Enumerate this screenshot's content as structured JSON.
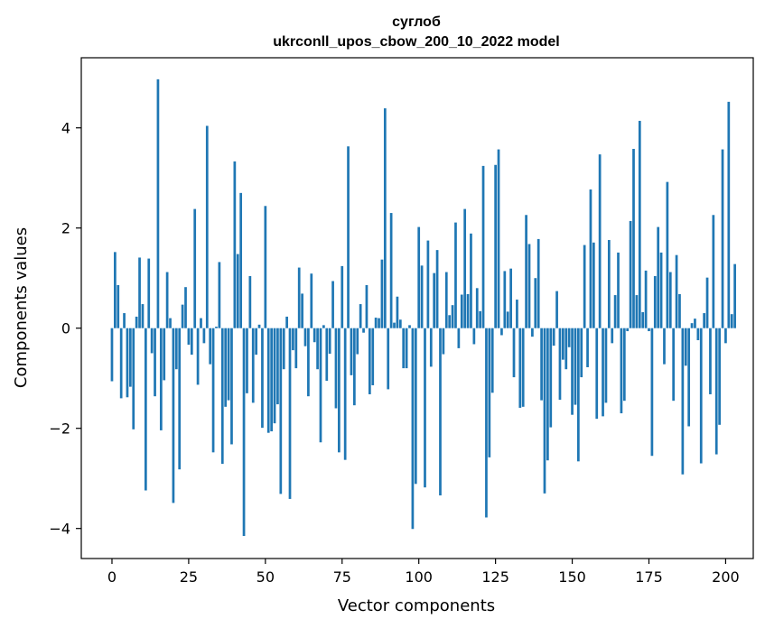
{
  "chart_data": {
    "type": "bar",
    "title_line1": "суглоб",
    "title_line2": "ukrconll_upos_cbow_200_10_2022 model",
    "xlabel": "Vector components",
    "ylabel": "Components values",
    "xlim": [
      -10,
      209
    ],
    "ylim": [
      -4.6,
      5.4
    ],
    "x_ticks": [
      0,
      25,
      50,
      75,
      100,
      125,
      150,
      175,
      200
    ],
    "x_tick_labels": [
      "0",
      "25",
      "50",
      "75",
      "100",
      "125",
      "150",
      "175",
      "200"
    ],
    "y_ticks": [
      -4,
      -2,
      0,
      2,
      4
    ],
    "y_tick_labels": [
      "−4",
      "−2",
      "0",
      "2",
      "4"
    ],
    "bar_color": "#1f77b4",
    "grid": false,
    "values": [
      -1.06,
      1.52,
      0.86,
      -1.4,
      0.3,
      -1.38,
      -1.17,
      -2.02,
      0.23,
      1.41,
      0.48,
      -3.24,
      1.39,
      -0.5,
      -1.36,
      4.97,
      -2.04,
      -1.04,
      1.12,
      0.2,
      -3.49,
      -0.82,
      -2.82,
      0.47,
      0.82,
      -0.33,
      -0.53,
      2.38,
      -1.13,
      0.2,
      -0.3,
      4.04,
      -0.72,
      -2.48,
      0.03,
      1.32,
      -2.71,
      -1.57,
      -1.44,
      -2.32,
      3.33,
      1.48,
      2.7,
      -4.15,
      -1.3,
      1.04,
      -1.49,
      -0.53,
      0.07,
      -1.99,
      2.44,
      -2.09,
      -2.06,
      -1.9,
      -1.52,
      -3.31,
      -0.82,
      0.23,
      -3.41,
      -0.44,
      -0.8,
      1.21,
      0.69,
      -0.36,
      -1.36,
      1.09,
      -0.28,
      -0.82,
      -2.28,
      0.06,
      -1.05,
      -0.51,
      0.94,
      -1.6,
      -2.48,
      1.24,
      -2.63,
      3.63,
      -0.94,
      -1.54,
      -0.52,
      0.48,
      -0.09,
      0.86,
      -1.32,
      -1.14,
      0.21,
      0.2,
      1.37,
      4.39,
      -1.22,
      2.3,
      0.11,
      0.63,
      0.17,
      -0.8,
      -0.8,
      0.06,
      -4.01,
      -3.11,
      2.02,
      1.25,
      -3.18,
      1.75,
      -0.77,
      1.1,
      1.56,
      -3.34,
      -0.52,
      1.12,
      0.26,
      0.46,
      2.11,
      -0.4,
      0.67,
      2.38,
      0.68,
      1.89,
      -0.32,
      0.8,
      0.34,
      3.24,
      -3.78,
      -2.58,
      -1.29,
      3.26,
      3.57,
      -0.14,
      1.14,
      0.33,
      1.19,
      -0.98,
      0.57,
      -1.59,
      -1.57,
      2.26,
      1.68,
      -0.17,
      1.0,
      1.78,
      -1.44,
      -3.3,
      -2.64,
      -1.98,
      -0.35,
      0.74,
      -1.43,
      -0.63,
      -0.82,
      -0.38,
      -1.73,
      -1.53,
      -2.66,
      -0.98,
      1.66,
      -0.78,
      2.77,
      1.71,
      -1.81,
      3.47,
      -1.76,
      -1.49,
      1.76,
      -0.3,
      0.66,
      1.51,
      -1.7,
      -1.45,
      -0.06,
      2.14,
      3.58,
      0.66,
      4.14,
      0.32,
      1.15,
      -0.06,
      -2.55,
      1.04,
      2.02,
      1.51,
      -0.72,
      2.92,
      1.12,
      -1.45,
      1.46,
      0.68,
      -2.92,
      -0.75,
      -1.96,
      0.1,
      0.19,
      -0.24,
      -2.7,
      0.3,
      1.01,
      -1.32,
      2.26,
      -2.52,
      -1.93,
      3.57,
      -0.3,
      4.52,
      0.28,
      1.28
    ]
  }
}
